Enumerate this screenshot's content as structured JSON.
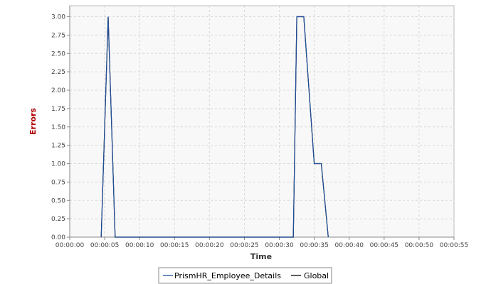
{
  "chart_data": {
    "type": "line",
    "title": "",
    "xlabel": "Time",
    "ylabel": "Errors",
    "x_ticks": [
      "00:00:00",
      "00:00:05",
      "00:00:10",
      "00:00:15",
      "00:00:20",
      "00:00:25",
      "00:00:30",
      "00:00:35",
      "00:00:40",
      "00:00:45",
      "00:00:50",
      "00:00:55"
    ],
    "y_ticks": [
      "0.00",
      "0.25",
      "0.50",
      "0.75",
      "1.00",
      "1.25",
      "1.50",
      "1.75",
      "2.00",
      "2.25",
      "2.50",
      "2.75",
      "3.00"
    ],
    "xlim": [
      "00:00:00",
      "00:00:55"
    ],
    "ylim": [
      0,
      3.15
    ],
    "grid": true,
    "legend_position": "bottom",
    "series": [
      {
        "name": "PrismHR_Employee_Details",
        "color": "#1f4e9a",
        "points": [
          [
            "00:00:04.5",
            0
          ],
          [
            "00:00:05.5",
            3
          ],
          [
            "00:00:06.5",
            0
          ],
          [
            "00:00:32",
            0
          ],
          [
            "00:00:32.5",
            3
          ],
          [
            "00:00:33.5",
            3
          ],
          [
            "00:00:35",
            1
          ],
          [
            "00:00:36",
            1
          ],
          [
            "00:00:37",
            0
          ]
        ]
      },
      {
        "name": "Global",
        "color": "#000000",
        "points": [
          [
            "00:00:04.5",
            0
          ],
          [
            "00:00:05.5",
            3
          ],
          [
            "00:00:06.5",
            0
          ],
          [
            "00:00:32",
            0
          ],
          [
            "00:00:32.5",
            3
          ],
          [
            "00:00:33.5",
            3
          ],
          [
            "00:00:35",
            1
          ],
          [
            "00:00:36",
            1
          ],
          [
            "00:00:37",
            0
          ]
        ]
      }
    ]
  },
  "colors": {
    "plot_background": "#f8f8f8",
    "gridline": "#d8d8d8",
    "axis_title_y": "#b00000",
    "axis_title_x": "#333333"
  }
}
